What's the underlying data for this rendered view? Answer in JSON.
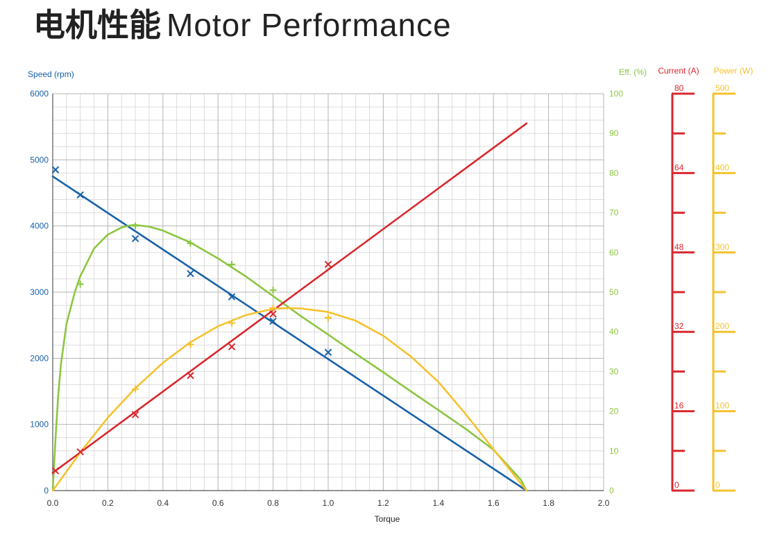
{
  "title": {
    "cn": "电机性能",
    "en": "Motor Performance"
  },
  "colors": {
    "speed": "#1760a8",
    "efficiency": "#8cc63f",
    "current": "#d9262c",
    "power": "#f5c22d",
    "grid_major": "#b5b5b5",
    "grid_minor": "#dcdcdc"
  },
  "chart_data": {
    "type": "line",
    "xlabel": "Torque",
    "x_ticks": [
      "0.0",
      "0.2",
      "0.4",
      "0.6",
      "0.8",
      "1.0",
      "1.2",
      "1.4",
      "1.6",
      "1.8",
      "2.0"
    ],
    "xlim": [
      0,
      2.0
    ],
    "grid": true,
    "axes": {
      "speed": {
        "label": "Speed (rpm)",
        "range": [
          0,
          6000
        ],
        "ticks": [
          "0",
          "1000",
          "2000",
          "3000",
          "4000",
          "5000",
          "6000"
        ]
      },
      "efficiency": {
        "label": "Eff. (%)",
        "range": [
          0,
          100
        ],
        "ticks": [
          "0",
          "10",
          "20",
          "30",
          "40",
          "50",
          "60",
          "70",
          "80",
          "90",
          "100"
        ]
      },
      "current": {
        "label": "Current (A)",
        "range": [
          0,
          80
        ],
        "ticks": [
          "0",
          "16",
          "32",
          "48",
          "64",
          "80"
        ]
      },
      "power": {
        "label": "Power (W)",
        "range": [
          0,
          500
        ],
        "ticks": [
          "0",
          "100",
          "200",
          "300",
          "400",
          "500"
        ]
      }
    },
    "series": [
      {
        "key": "speed",
        "axis": "speed",
        "marker": "x",
        "curve": {
          "x": [
            0,
            1.72
          ],
          "y": [
            4750,
            0
          ]
        },
        "points": {
          "x": [
            0.01,
            0.1,
            0.3,
            0.5,
            0.65,
            0.8,
            1.0
          ],
          "y": [
            4850,
            4470,
            3810,
            3280,
            2930,
            2560,
            2090
          ]
        }
      },
      {
        "key": "efficiency",
        "axis": "efficiency",
        "marker": "+",
        "curve": {
          "x": [
            0,
            0.01,
            0.02,
            0.03,
            0.05,
            0.08,
            0.1,
            0.15,
            0.2,
            0.25,
            0.28,
            0.3,
            0.35,
            0.4,
            0.5,
            0.6,
            0.7,
            0.8,
            0.9,
            1.0,
            1.1,
            1.2,
            1.3,
            1.4,
            1.5,
            1.6,
            1.7,
            1.72
          ],
          "y": [
            0,
            13,
            24,
            32,
            42,
            50,
            54,
            61,
            64.5,
            66.3,
            66.8,
            66.9,
            66.5,
            65.5,
            62.5,
            58.5,
            54,
            49,
            44,
            39.3,
            34.5,
            29.8,
            25,
            20.3,
            15.5,
            10.3,
            2.7,
            0
          ]
        },
        "points": {
          "x": [
            0.1,
            0.3,
            0.5,
            0.65,
            0.8,
            1.0
          ],
          "y": [
            52,
            66.7,
            62.3,
            57,
            50.5,
            43.5
          ]
        }
      },
      {
        "key": "current",
        "axis": "current",
        "marker": "x",
        "curve": {
          "x": [
            0,
            1.72
          ],
          "y": [
            3.6,
            74
          ]
        },
        "points": {
          "x": [
            0.01,
            0.1,
            0.3,
            0.5,
            0.65,
            0.8,
            1.0
          ],
          "y": [
            4,
            7.8,
            15.3,
            23.2,
            29,
            35.6,
            45.6
          ]
        }
      },
      {
        "key": "power",
        "axis": "power",
        "marker": "+",
        "curve": {
          "x": [
            0,
            0.1,
            0.2,
            0.3,
            0.4,
            0.5,
            0.6,
            0.7,
            0.8,
            0.86,
            0.9,
            1.0,
            1.1,
            1.2,
            1.3,
            1.4,
            1.5,
            1.6,
            1.72
          ],
          "y": [
            0,
            48,
            92,
            129,
            161,
            187,
            207,
            221,
            229,
            230,
            229.5,
            225,
            214,
            195,
            169,
            137,
            96,
            52,
            0
          ]
        },
        "points": {
          "x": [
            0.3,
            0.5,
            0.65,
            0.8,
            1.0
          ],
          "y": [
            128,
            184,
            211,
            230,
            218
          ]
        }
      }
    ]
  }
}
